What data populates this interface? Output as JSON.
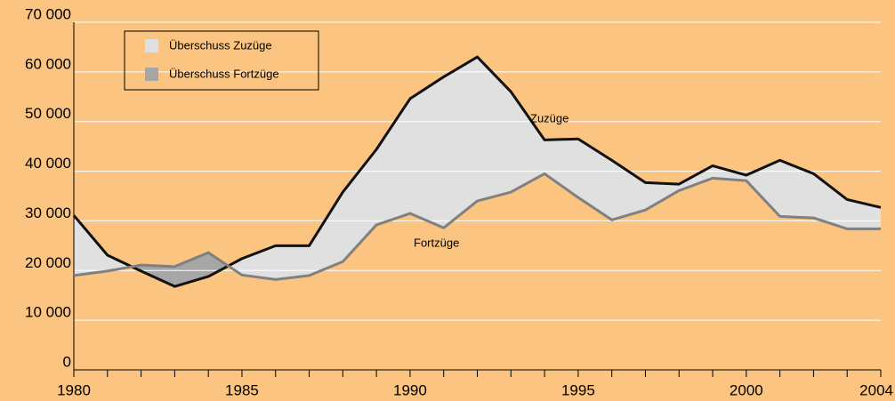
{
  "chart_data": {
    "type": "area-line",
    "x": [
      1980,
      1981,
      1982,
      1983,
      1984,
      1985,
      1986,
      1987,
      1988,
      1989,
      1990,
      1991,
      1992,
      1993,
      1994,
      1995,
      1996,
      1997,
      1998,
      1999,
      2000,
      2001,
      2002,
      2003,
      2004
    ],
    "series": [
      {
        "name": "Zuzüge",
        "color": "#111111",
        "values": [
          31100,
          23100,
          19900,
          16800,
          18800,
          22400,
          25000,
          25000,
          35800,
          44400,
          54600,
          59000,
          63000,
          56000,
          46300,
          46500,
          42200,
          37700,
          37400,
          41100,
          39200,
          42200,
          39500,
          34300,
          32700
        ]
      },
      {
        "name": "Fortzüge",
        "color": "#808080",
        "values": [
          19000,
          19900,
          21100,
          20800,
          23600,
          19100,
          18200,
          19000,
          21800,
          29200,
          31500,
          28600,
          34000,
          35800,
          39500,
          34700,
          30200,
          32200,
          36100,
          38600,
          38100,
          30900,
          30600,
          28400,
          28400
        ]
      }
    ],
    "fills": [
      {
        "name": "Überschuss Zuzüge",
        "color": "#e0e0e0"
      },
      {
        "name": "Überschuss Fortzüge",
        "color": "#a6a6a6"
      }
    ],
    "annotations": [
      "Zuzüge",
      "Fortzüge"
    ],
    "xlim": [
      1980,
      2004
    ],
    "xticks": [
      1980,
      1985,
      1990,
      1995,
      2000,
      2004
    ],
    "ylim": [
      0,
      70000
    ],
    "yticks": [
      0,
      {
        "value": 10000,
        "label": "10 000"
      },
      {
        "value": 20000,
        "label": "20 000"
      },
      {
        "value": 30000,
        "label": "30 000"
      },
      {
        "value": 40000,
        "label": "40 000"
      },
      {
        "value": 50000,
        "label": "50 000"
      },
      {
        "value": 60000,
        "label": "60 000"
      },
      {
        "value": 70000,
        "label": "70 000"
      }
    ],
    "grid": true
  }
}
